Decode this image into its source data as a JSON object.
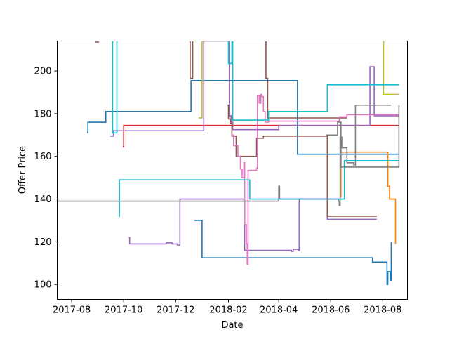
{
  "chart_data": {
    "type": "line",
    "step": "post",
    "title": "",
    "xlabel": "Date",
    "ylabel": "Offer Price",
    "x_axis_type": "date",
    "xlim": [
      "2017-07-15",
      "2018-08-30"
    ],
    "ylim": [
      93,
      214
    ],
    "grid": false,
    "legend": false,
    "x_ticks": [
      "2017-08-01",
      "2017-10-01",
      "2017-12-01",
      "2018-02-01",
      "2018-04-01",
      "2018-06-01",
      "2018-08-01"
    ],
    "x_tick_labels": [
      "2017-08",
      "2017-10",
      "2017-12",
      "2018-02",
      "2018-04",
      "2018-06",
      "2018-08"
    ],
    "y_ticks": [
      100,
      120,
      140,
      160,
      180,
      200
    ],
    "y_tick_labels": [
      "100",
      "120",
      "140",
      "160",
      "180",
      "200"
    ],
    "series": [
      {
        "color": "#1f77b4",
        "x": [
          "2017-08-19",
          "2017-08-20",
          "2017-09-10",
          "2017-12-19",
          "2018-04-23",
          "2018-08-20"
        ],
        "y": [
          171,
          176,
          181,
          195.5,
          161,
          161
        ]
      },
      {
        "color": "#1f77b4",
        "x": [
          "2017-12-23",
          "2018-01-01",
          "2018-07-20",
          "2018-08-05",
          "2018-08-06",
          "2018-08-07",
          "2018-08-09",
          "2018-08-10",
          "2018-08-11"
        ],
        "y": [
          130,
          112.5,
          110.5,
          110.5,
          100,
          106,
          106,
          102,
          120
        ]
      },
      {
        "color": "#ff7f0e",
        "x": [
          "2018-06-12",
          "2018-06-13",
          "2018-06-17",
          "2018-08-07",
          "2018-08-09",
          "2018-08-14",
          "2018-08-16"
        ],
        "y": [
          141,
          162,
          162,
          146,
          140,
          140,
          119
        ]
      },
      {
        "color": "#d62728",
        "x": [
          "2017-09-30",
          "2017-10-01",
          "2018-08-20"
        ],
        "y": [
          164.5,
          174.5,
          174.5
        ]
      },
      {
        "color": "#9467bd",
        "x": [
          "2017-09-15",
          "2017-09-19",
          "2017-12-29",
          "2018-01-03",
          "2018-02-02",
          "2018-02-04",
          "2018-02-06",
          "2018-03-28",
          "2018-04-01",
          "2018-06-25",
          "2018-07-15",
          "2018-07-17",
          "2018-07-20",
          "2018-07-22",
          "2018-08-20"
        ],
        "y": [
          169.5,
          172,
          172,
          214,
          179,
          176,
          172.5,
          172.5,
          174.5,
          174.5,
          174.5,
          202,
          202,
          179,
          179
        ]
      },
      {
        "color": "#9467bd",
        "x": [
          "2017-10-07",
          "2017-10-08",
          "2017-11-18",
          "2017-11-20",
          "2017-11-27",
          "2017-12-03",
          "2017-12-06",
          "2018-02-20",
          "2018-02-22",
          "2018-04-05",
          "2018-04-16",
          "2018-04-18",
          "2018-04-24",
          "2018-04-25",
          "2018-05-27",
          "2018-05-28",
          "2018-07-25"
        ],
        "y": [
          122,
          119,
          119,
          119.5,
          119,
          118.5,
          140,
          116,
          116,
          116,
          115.5,
          116.5,
          116,
          140,
          140,
          130.5,
          130.5
        ]
      },
      {
        "color": "#8c564b",
        "x": [
          "2017-08-29",
          "2017-09-02"
        ],
        "y": [
          213.5,
          213.5
        ]
      },
      {
        "color": "#8c564b",
        "x": [
          "2017-12-17",
          "2017-12-18",
          "2017-12-21"
        ],
        "y": [
          214,
          196.5,
          214
        ]
      },
      {
        "color": "#8c564b",
        "x": [
          "2018-01-31",
          "2018-02-01",
          "2018-02-03",
          "2018-02-05",
          "2018-02-10",
          "2018-03-02",
          "2018-03-06",
          "2018-03-10",
          "2018-03-14",
          "2018-03-16",
          "2018-04-21",
          "2018-05-28",
          "2018-06-01",
          "2018-06-20",
          "2018-07-25"
        ],
        "y": [
          184,
          177.5,
          175.5,
          169.5,
          160,
          160,
          168.5,
          168.5,
          169.5,
          169.5,
          169.5,
          132,
          132,
          132,
          132
        ]
      },
      {
        "color": "#8c564b",
        "x": [
          "2018-03-16",
          "2018-03-17",
          "2018-03-19",
          "2018-06-12",
          "2018-06-20"
        ],
        "y": [
          214,
          196.5,
          178,
          178,
          178
        ]
      },
      {
        "color": "#e377c2",
        "x": [
          "2018-02-05",
          "2018-02-07",
          "2018-02-12",
          "2018-02-15",
          "2018-02-17",
          "2018-02-19",
          "2018-02-20",
          "2018-02-22",
          "2018-02-23",
          "2018-02-24",
          "2018-03-01",
          "2018-03-06",
          "2018-03-07",
          "2018-03-09",
          "2018-03-11",
          "2018-03-12",
          "2018-03-14",
          "2018-03-16",
          "2018-03-18",
          "2018-03-20",
          "2018-03-22",
          "2018-04-25",
          "2018-06-11",
          "2018-06-20",
          "2018-07-25",
          "2018-08-20"
        ],
        "y": [
          170,
          165,
          160,
          154,
          150,
          157,
          128,
          119,
          109.5,
          153.5,
          153.5,
          154.5,
          188.5,
          185,
          189,
          188,
          181,
          176,
          176,
          176.5,
          176.5,
          176.5,
          178.5,
          179.5,
          179.5,
          179.5
        ]
      },
      {
        "color": "#7f7f7f",
        "x": [
          "2017-07-15",
          "2018-03-31",
          "2018-04-01",
          "2018-04-02",
          "2018-04-03",
          "2018-05-25",
          "2018-06-01",
          "2018-06-10",
          "2018-06-11",
          "2018-06-12",
          "2018-06-14",
          "2018-06-16",
          "2018-06-20",
          "2018-06-23",
          "2018-06-28",
          "2018-06-30",
          "2018-08-11"
        ],
        "y": [
          139,
          139,
          146,
          140,
          140,
          140,
          140,
          139,
          137,
          169,
          164,
          164,
          157,
          157,
          156,
          184,
          184
        ]
      },
      {
        "color": "#7f7f7f",
        "x": [
          "2018-05-26",
          "2018-06-09",
          "2018-06-13",
          "2018-08-20"
        ],
        "y": [
          170,
          176,
          155,
          184
        ]
      },
      {
        "color": "#bcbd22",
        "x": [
          "2017-12-28",
          "2018-01-01",
          "2018-01-05"
        ],
        "y": [
          178,
          214,
          214
        ]
      },
      {
        "color": "#bcbd22",
        "x": [
          "2018-08-01",
          "2018-08-02",
          "2018-08-20"
        ],
        "y": [
          214,
          189,
          189
        ]
      },
      {
        "color": "#17becf",
        "x": [
          "2017-09-17",
          "2017-09-18",
          "2017-09-22",
          "2017-09-23"
        ],
        "y": [
          214,
          171,
          171,
          214
        ]
      },
      {
        "color": "#17becf",
        "x": [
          "2017-09-25",
          "2017-09-26",
          "2018-02-16",
          "2018-02-19",
          "2018-02-25",
          "2018-02-26",
          "2018-03-11",
          "2018-03-12",
          "2018-05-27",
          "2018-06-10",
          "2018-06-17",
          "2018-08-20"
        ],
        "y": [
          132,
          149,
          149,
          149,
          149,
          140,
          140,
          140,
          140,
          140,
          158,
          158
        ]
      },
      {
        "color": "#17becf",
        "x": [
          "2018-01-31",
          "2018-02-01",
          "2018-02-05",
          "2018-02-06",
          "2018-02-07",
          "2018-03-20",
          "2018-03-22",
          "2018-05-27",
          "2018-05-28",
          "2018-08-20"
        ],
        "y": [
          214,
          203.5,
          214,
          177,
          177,
          181,
          181,
          181,
          193.5,
          193.5
        ]
      }
    ]
  }
}
